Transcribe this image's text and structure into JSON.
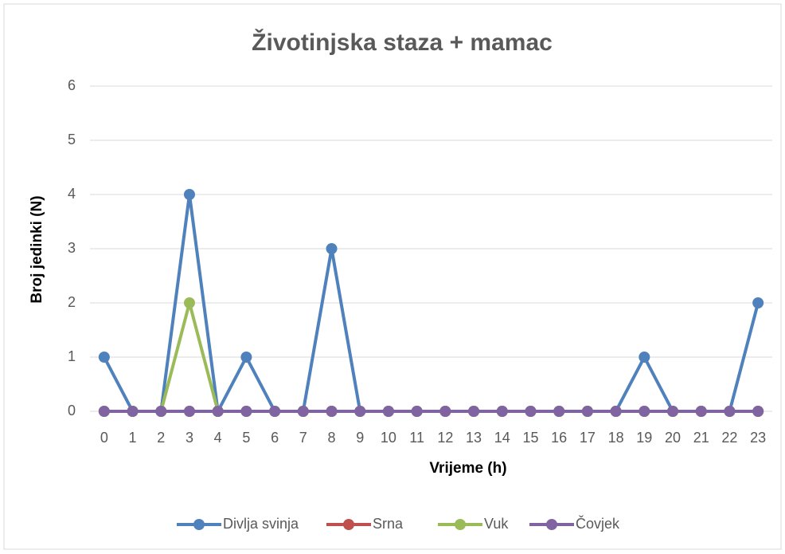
{
  "chart_data": {
    "type": "line",
    "title": "Životinjska staza + mamac",
    "xlabel": "Vrijeme (h)",
    "ylabel": "Broj jedinki (N)",
    "x": [
      0,
      1,
      2,
      3,
      4,
      5,
      6,
      7,
      8,
      9,
      10,
      11,
      12,
      13,
      14,
      15,
      16,
      17,
      18,
      19,
      20,
      21,
      22,
      23
    ],
    "xlim": [
      -0.5,
      23.5
    ],
    "xticks": [
      0,
      1,
      2,
      3,
      4,
      5,
      6,
      7,
      8,
      9,
      10,
      11,
      12,
      13,
      14,
      15,
      16,
      17,
      18,
      19,
      20,
      21,
      22,
      23
    ],
    "ylim": [
      0,
      6
    ],
    "yticks": [
      0,
      1,
      2,
      3,
      4,
      5,
      6
    ],
    "grid": true,
    "legend": "bottom",
    "series": [
      {
        "name": "Divlja svinja",
        "color": "#4f81bd",
        "values": [
          1,
          0,
          0,
          4,
          0,
          1,
          0,
          0,
          3,
          0,
          0,
          0,
          0,
          0,
          0,
          0,
          0,
          0,
          0,
          1,
          0,
          0,
          0,
          2
        ]
      },
      {
        "name": "Srna",
        "color": "#c0504d",
        "values": [
          0,
          0,
          0,
          0,
          0,
          0,
          0,
          0,
          0,
          0,
          0,
          0,
          0,
          0,
          0,
          0,
          0,
          0,
          0,
          0,
          0,
          0,
          0,
          0
        ]
      },
      {
        "name": "Vuk",
        "color": "#9bbb59",
        "values": [
          0,
          0,
          0,
          2,
          0,
          0,
          0,
          0,
          0,
          0,
          0,
          0,
          0,
          0,
          0,
          0,
          0,
          0,
          0,
          0,
          0,
          0,
          0,
          0
        ]
      },
      {
        "name": "Čovjek",
        "color": "#8064a2",
        "values": [
          0,
          0,
          0,
          0,
          0,
          0,
          0,
          0,
          0,
          0,
          0,
          0,
          0,
          0,
          0,
          0,
          0,
          0,
          0,
          0,
          0,
          0,
          0,
          0
        ]
      }
    ]
  }
}
